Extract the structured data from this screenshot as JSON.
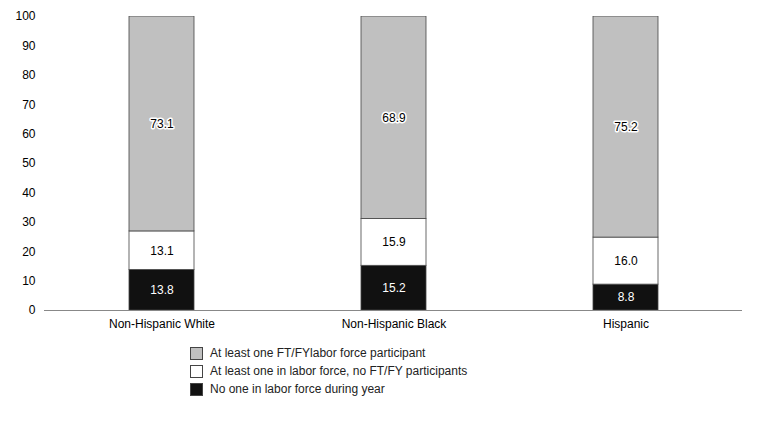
{
  "chart_data": {
    "type": "bar",
    "stacked": true,
    "categories": [
      "Non-Hispanic White",
      "Non-Hispanic Black",
      "Hispanic"
    ],
    "series": [
      {
        "name": "No one in labor force during year",
        "color": "#111111",
        "values": [
          13.8,
          15.2,
          8.8
        ]
      },
      {
        "name": "At least one in labor force, no FT/FY participants",
        "color": "#ffffff",
        "values": [
          13.1,
          15.9,
          16.0
        ],
        "value_labels": [
          "13.1",
          "15.9",
          "16.0"
        ]
      },
      {
        "name": "At least one FT/FYlabor force participant",
        "color": "#c0c0c0",
        "values": [
          73.1,
          68.9,
          75.2
        ]
      }
    ],
    "ylim": [
      0,
      100
    ],
    "yticks": [
      0,
      10,
      20,
      30,
      40,
      50,
      60,
      70,
      80,
      90,
      100
    ],
    "grid": false,
    "legend": "bottom",
    "data_labels": true
  }
}
